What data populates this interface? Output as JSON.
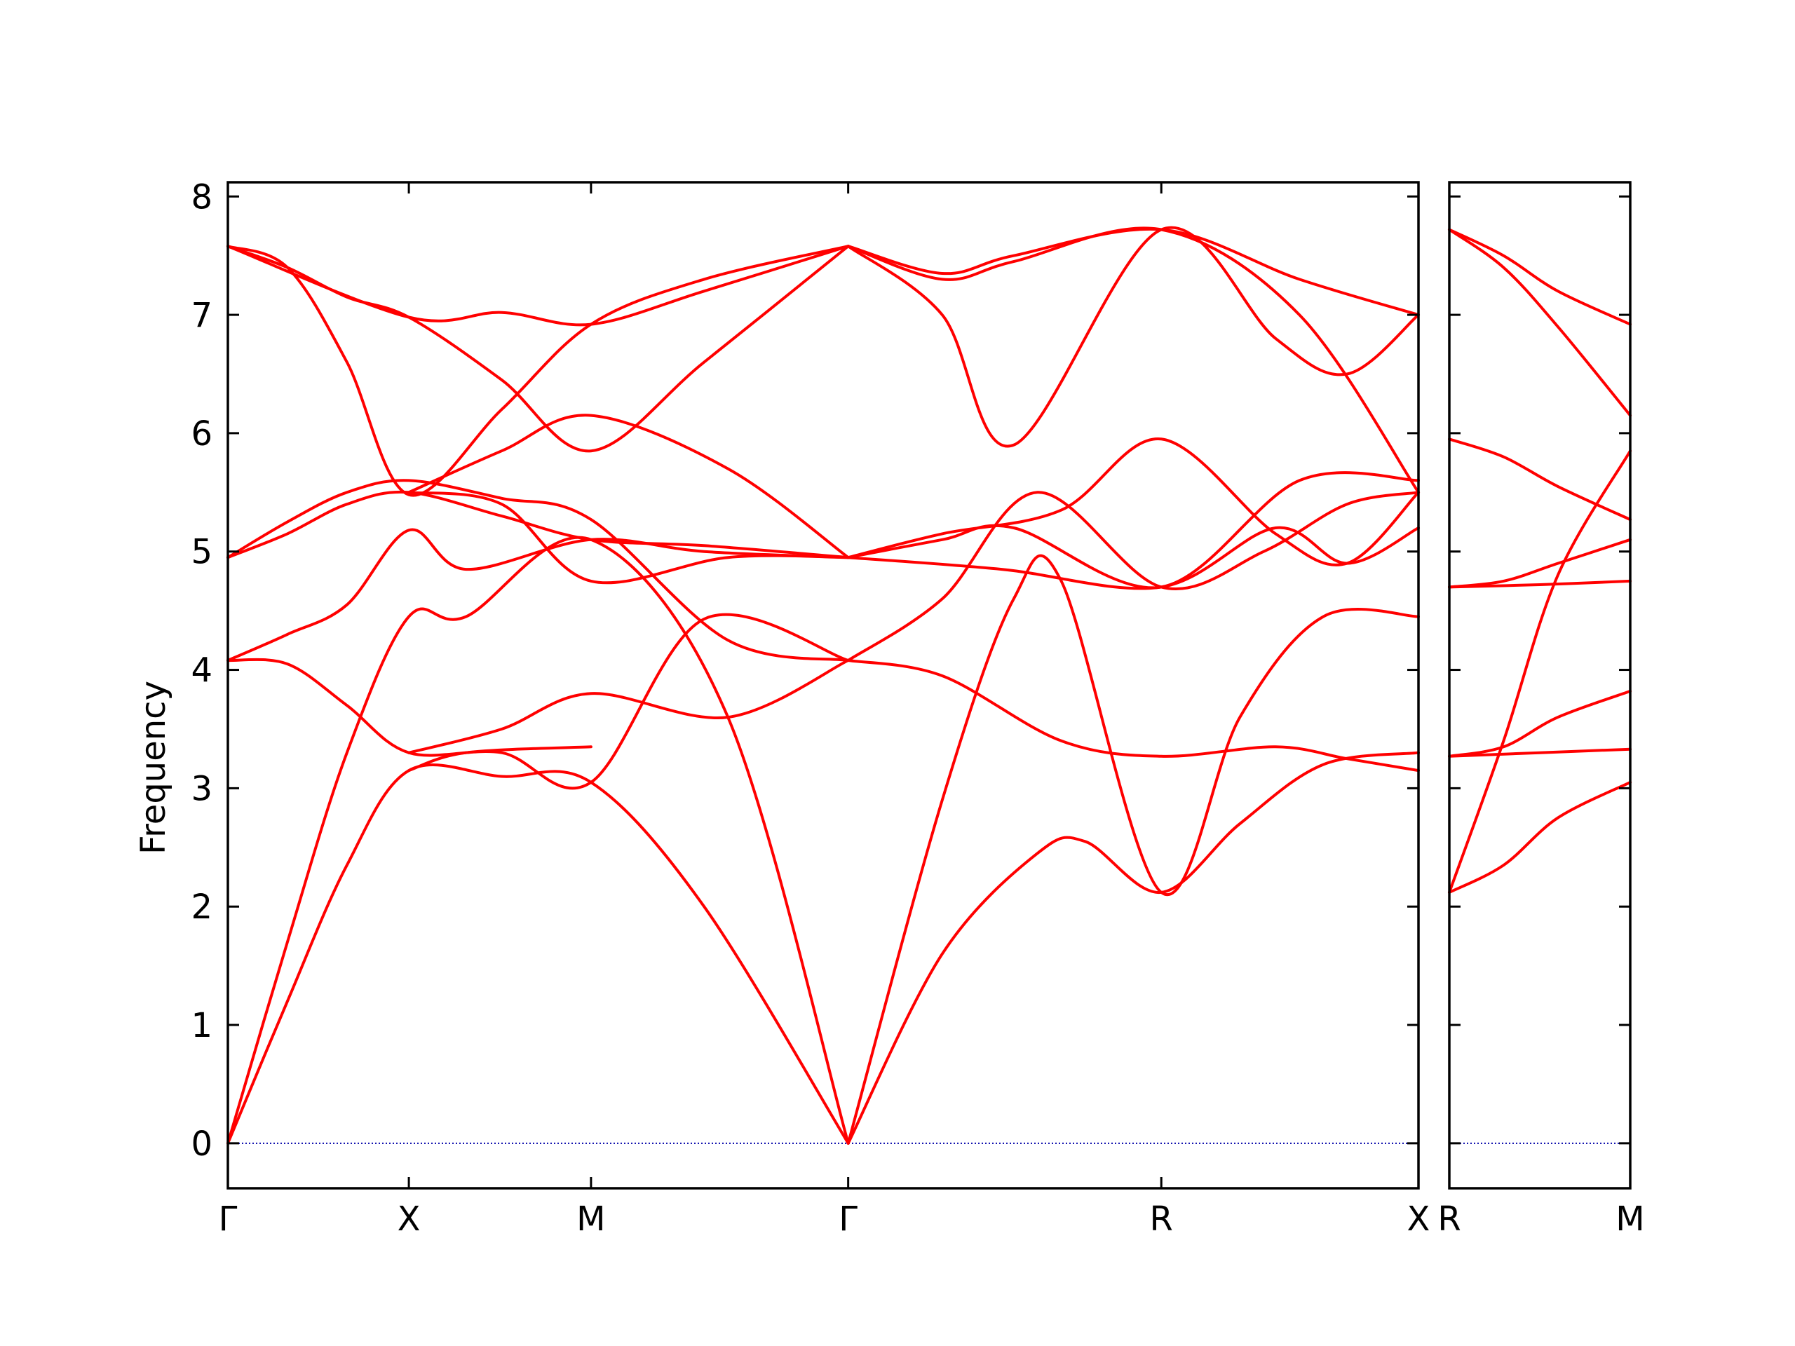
{
  "chart_data": {
    "type": "line",
    "ylabel": "Frequency",
    "ylim": [
      -0.38,
      8.12
    ],
    "yticks": [
      0,
      1,
      2,
      3,
      4,
      5,
      6,
      7,
      8
    ],
    "line_color": "#ff0000",
    "zero_line_color": "#0000aa",
    "panels": [
      {
        "xticks": [
          {
            "x": 0,
            "label": "Γ"
          },
          {
            "x": 0.152,
            "label": "X"
          },
          {
            "x": 0.305,
            "label": "M"
          },
          {
            "x": 0.521,
            "label": "Γ"
          },
          {
            "x": 0.784,
            "label": "R"
          },
          {
            "x": 1.0,
            "label": "X"
          }
        ],
        "series": [
          {
            "x": [
              0,
              0.05,
              0.1,
              0.152,
              0.23,
              0.305,
              0.4,
              0.521
            ],
            "y": [
              0,
              1.2,
              2.35,
              3.15,
              3.1,
              3.05,
              2,
              0
            ]
          },
          {
            "x": [
              0,
              0.05,
              0.1,
              0.152,
              0.2,
              0.305,
              0.42,
              0.521
            ],
            "y": [
              0,
              1.7,
              3.3,
              4.45,
              4.45,
              5.1,
              3.6,
              0
            ]
          },
          {
            "x": [
              0,
              0.05,
              0.1,
              0.152,
              0.23,
              0.305,
              0.4,
              0.521
            ],
            "y": [
              4.08,
              4.05,
              3.7,
              3.3,
              3.3,
              3.05,
              4.43,
              4.08
            ]
          },
          {
            "x": [
              0,
              0.05,
              0.1,
              0.152,
              0.2,
              0.305,
              0.4,
              0.521
            ],
            "y": [
              4.08,
              4.3,
              4.55,
              5.18,
              4.85,
              5.1,
              5.0,
              4.95
            ]
          },
          {
            "x": [
              0,
              0.05,
              0.1,
              0.152,
              0.23,
              0.305,
              0.4,
              0.521
            ],
            "y": [
              4.95,
              5.15,
              5.4,
              5.5,
              5.3,
              5.1,
              5.05,
              4.95
            ]
          },
          {
            "x": [
              0,
              0.05,
              0.1,
              0.152,
              0.23,
              0.305,
              0.42,
              0.521
            ],
            "y": [
              4.95,
              5.25,
              5.5,
              5.6,
              5.45,
              5.27,
              4.25,
              4.08
            ]
          },
          {
            "x": [
              0,
              0.05,
              0.1,
              0.152,
              0.23,
              0.305,
              0.4,
              0.521
            ],
            "y": [
              7.58,
              7.4,
              6.6,
              5.48,
              6.2,
              6.92,
              7.3,
              7.58
            ]
          },
          {
            "x": [
              0,
              0.05,
              0.1,
              0.152,
              0.23,
              0.305,
              0.4,
              0.521
            ],
            "y": [
              7.58,
              7.4,
              7.15,
              6.98,
              6.45,
              5.85,
              6.6,
              7.58
            ]
          },
          {
            "x": [
              0,
              0.152,
              0.23,
              0.305,
              0.4,
              0.521
            ],
            "y": [
              7.58,
              6.98,
              7.02,
              6.92,
              7.2,
              7.58
            ]
          },
          {
            "x": [
              0.152,
              0.23,
              0.305,
              0.42,
              0.521
            ],
            "y": [
              5.5,
              5.4,
              4.75,
              4.95,
              4.95
            ]
          },
          {
            "x": [
              0.152,
              0.23,
              0.305,
              0.42,
              0.521
            ],
            "y": [
              3.3,
              3.5,
              3.8,
              3.6,
              4.08
            ]
          },
          {
            "x": [
              0.152,
              0.23,
              0.305,
              0.42,
              0.521
            ],
            "y": [
              5.5,
              5.85,
              6.15,
              5.7,
              4.95
            ]
          },
          {
            "x": [
              0.152,
              0.2,
              0.305
            ],
            "y": [
              3.15,
              3.3,
              3.35
            ]
          },
          {
            "x": [
              0.521,
              0.6,
              0.68,
              0.72,
              0.784,
              0.85,
              0.92,
              1.0
            ],
            "y": [
              0,
              1.6,
              2.45,
              2.55,
              2.12,
              2.7,
              3.2,
              3.3
            ]
          },
          {
            "x": [
              0.521,
              0.6,
              0.66,
              0.7,
              0.784,
              0.85,
              0.92,
              1.0
            ],
            "y": [
              0,
              2.9,
              4.6,
              4.75,
              2.12,
              3.6,
              4.45,
              4.45
            ]
          },
          {
            "x": [
              0.521,
              0.6,
              0.7,
              0.784,
              0.88,
              0.94,
              1.0
            ],
            "y": [
              4.08,
              3.95,
              3.4,
              3.27,
              3.35,
              3.25,
              3.15
            ]
          },
          {
            "x": [
              0.521,
              0.6,
              0.68,
              0.784,
              0.87,
              0.94,
              1.0
            ],
            "y": [
              4.08,
              4.6,
              5.5,
              4.7,
              5.0,
              5.4,
              5.5
            ]
          },
          {
            "x": [
              0.521,
              0.65,
              0.784,
              0.88,
              0.94,
              1.0
            ],
            "y": [
              4.95,
              4.85,
              4.7,
              5.2,
              4.9,
              5.2
            ]
          },
          {
            "x": [
              0.521,
              0.6,
              0.66,
              0.784,
              0.9,
              1.0
            ],
            "y": [
              4.95,
              5.1,
              5.2,
              4.7,
              5.6,
              5.6
            ]
          },
          {
            "x": [
              0.521,
              0.6,
              0.7,
              0.784,
              0.88,
              0.94,
              1.0
            ],
            "y": [
              4.95,
              5.15,
              5.35,
              5.95,
              5.15,
              4.9,
              5.5
            ]
          },
          {
            "x": [
              0.521,
              0.6,
              0.66,
              0.784,
              0.88,
              0.94,
              1.0
            ],
            "y": [
              7.58,
              7.0,
              5.9,
              7.72,
              6.8,
              6.5,
              7.0
            ]
          },
          {
            "x": [
              0.521,
              0.6,
              0.66,
              0.784,
              0.9,
              1.0
            ],
            "y": [
              7.58,
              7.3,
              7.45,
              7.72,
              7.0,
              5.5
            ]
          },
          {
            "x": [
              0.521,
              0.6,
              0.66,
              0.784,
              0.9,
              1.0
            ],
            "y": [
              7.58,
              7.35,
              7.5,
              7.72,
              7.3,
              7.0
            ]
          }
        ]
      },
      {
        "xticks": [
          {
            "x": 0,
            "label": "R"
          },
          {
            "x": 1.0,
            "label": "M"
          }
        ],
        "series": [
          {
            "x": [
              0,
              0.3,
              0.6,
              1.0
            ],
            "y": [
              2.12,
              2.35,
              2.75,
              3.05
            ]
          },
          {
            "x": [
              0,
              0.3,
              0.6,
              1.0
            ],
            "y": [
              2.12,
              3.4,
              4.8,
              5.85
            ]
          },
          {
            "x": [
              0,
              0.5,
              1.0
            ],
            "y": [
              3.27,
              3.3,
              3.33
            ]
          },
          {
            "x": [
              0,
              0.3,
              0.6,
              1.0
            ],
            "y": [
              3.27,
              3.35,
              3.6,
              3.82
            ]
          },
          {
            "x": [
              0,
              0.5,
              1.0
            ],
            "y": [
              4.7,
              4.72,
              4.75
            ]
          },
          {
            "x": [
              0,
              0.3,
              0.6,
              1.0
            ],
            "y": [
              4.7,
              4.75,
              4.9,
              5.1
            ]
          },
          {
            "x": [
              0,
              0.3,
              0.6,
              1.0
            ],
            "y": [
              5.95,
              5.8,
              5.55,
              5.27
            ]
          },
          {
            "x": [
              0,
              0.3,
              0.6,
              1.0
            ],
            "y": [
              7.72,
              7.4,
              6.9,
              6.15
            ]
          },
          {
            "x": [
              0,
              0.3,
              0.6,
              1.0
            ],
            "y": [
              7.72,
              7.5,
              7.2,
              6.92
            ]
          }
        ]
      }
    ]
  }
}
